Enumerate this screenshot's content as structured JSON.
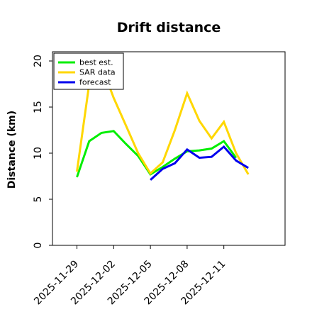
{
  "chart_data": {
    "type": "line",
    "title": "Drift distance",
    "xlabel": "",
    "ylabel": "Distance (km)",
    "ylim": [
      0,
      21
    ],
    "xlim": [
      "2025-11-27",
      "2025-12-16"
    ],
    "yticks": [
      0,
      5,
      10,
      15,
      20
    ],
    "xticks": [
      "2025-11-29",
      "2025-12-02",
      "2025-12-05",
      "2025-12-08",
      "2025-12-11"
    ],
    "grid": false,
    "legend_position": "top-left",
    "series": [
      {
        "name": "best est.",
        "color": "#00ee00",
        "x": [
          "2025-11-29",
          "2025-11-30",
          "2025-12-01",
          "2025-12-02",
          "2025-12-03",
          "2025-12-04",
          "2025-12-05",
          "2025-12-06",
          "2025-12-07",
          "2025-12-08",
          "2025-12-09",
          "2025-12-10",
          "2025-12-11",
          "2025-12-12"
        ],
        "values": [
          7.4,
          11.3,
          12.2,
          12.4,
          11.0,
          9.7,
          7.7,
          8.5,
          9.4,
          10.2,
          10.3,
          10.5,
          11.3,
          9.5
        ]
      },
      {
        "name": "SAR data",
        "color": "#ffd700",
        "x": [
          "2025-11-29",
          "2025-11-30",
          "2025-12-01",
          "2025-12-02",
          "2025-12-03",
          "2025-12-04",
          "2025-12-05",
          "2025-12-06",
          "2025-12-07",
          "2025-12-08",
          "2025-12-09",
          "2025-12-10",
          "2025-12-11",
          "2025-12-12",
          "2025-12-13"
        ],
        "values": [
          8.0,
          17.5,
          19.5,
          16.0,
          13.0,
          10.0,
          7.8,
          9.0,
          12.5,
          16.5,
          13.5,
          11.6,
          13.4,
          10.0,
          7.7
        ]
      },
      {
        "name": "forecast",
        "color": "#0000ee",
        "x": [
          "2025-12-05",
          "2025-12-06",
          "2025-12-07",
          "2025-12-08",
          "2025-12-09",
          "2025-12-10",
          "2025-12-11",
          "2025-12-12",
          "2025-12-13"
        ],
        "values": [
          7.1,
          8.3,
          8.9,
          10.4,
          9.5,
          9.6,
          10.7,
          9.2,
          8.4
        ]
      }
    ]
  }
}
